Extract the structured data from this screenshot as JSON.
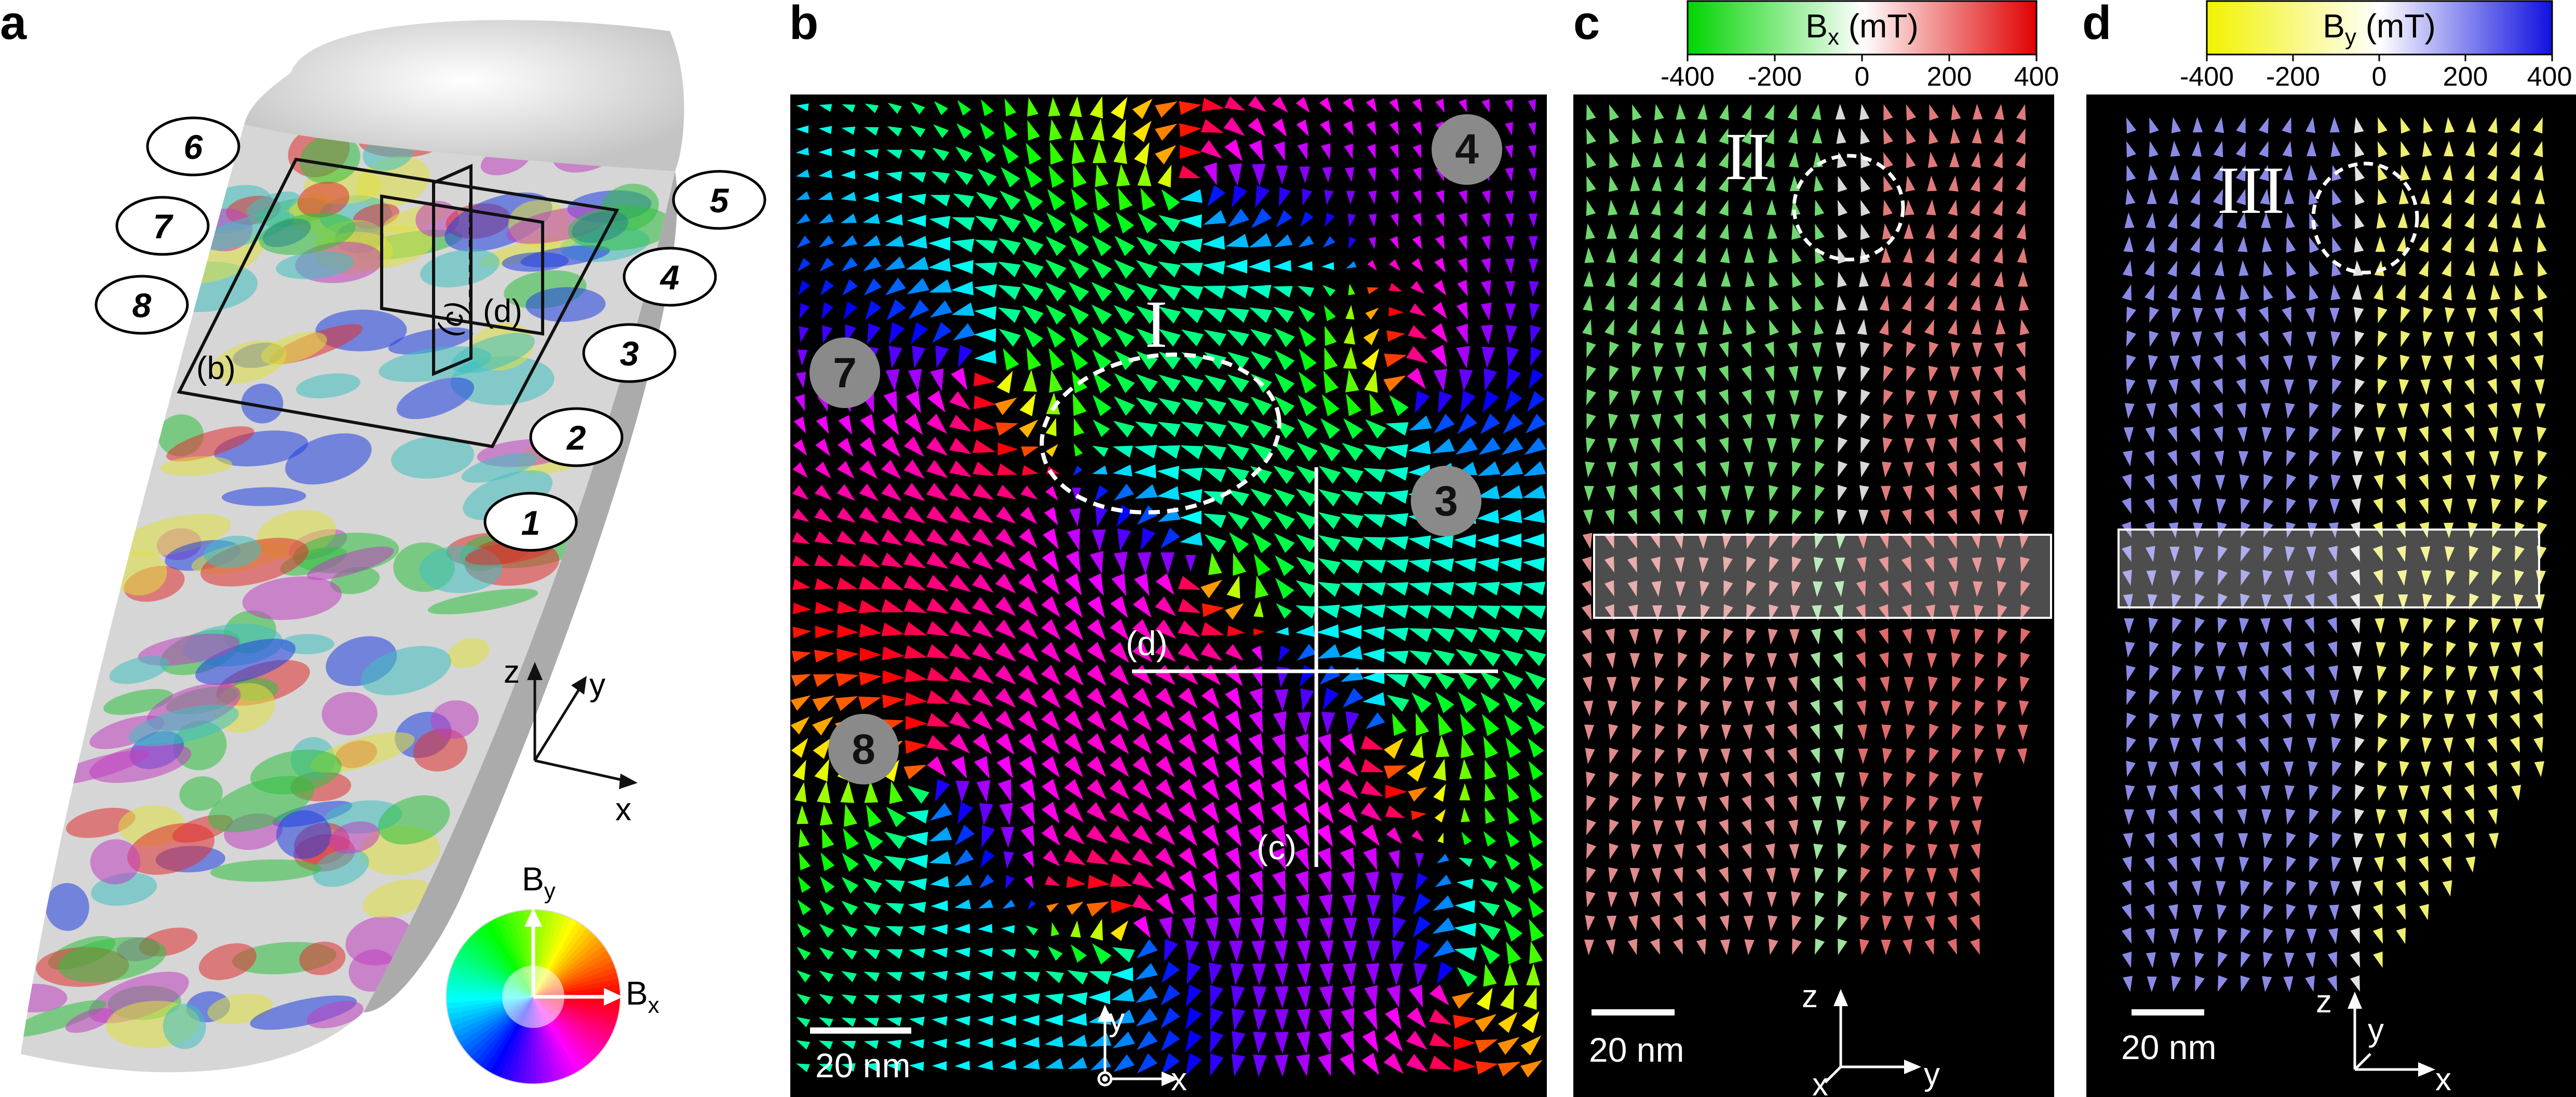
{
  "panel_labels": [
    "a",
    "b",
    "c",
    "d"
  ],
  "panel_a": {
    "markers": [
      "1",
      "2",
      "3",
      "4",
      "5",
      "6",
      "7",
      "8"
    ],
    "slice_labels": [
      "(b)",
      "(c)",
      "(d)"
    ],
    "axes": [
      "x",
      "y",
      "z"
    ],
    "colorwheel": {
      "x_label": "B",
      "x_sub": "x",
      "y_label": "B",
      "y_sub": "y"
    }
  },
  "panel_b": {
    "markers": [
      "4",
      "7",
      "3",
      "8"
    ],
    "region_label": "I",
    "slice_labels": [
      "(d)",
      "(c)"
    ],
    "scalebar": "20 nm",
    "axes": [
      "y",
      "x"
    ]
  },
  "panel_c": {
    "colorbar": {
      "label_pre": "B",
      "label_sub": "x",
      "label_post": " (mT)",
      "ticks": [
        "-400",
        "-200",
        "0",
        "200",
        "400"
      ],
      "colors": [
        "#00d400",
        "#ffffff",
        "#e00000"
      ]
    },
    "region_label": "II",
    "scalebar": "20 nm",
    "axes": [
      "z",
      "x",
      "y"
    ]
  },
  "panel_d": {
    "colorbar": {
      "label_pre": "B",
      "label_sub": "y",
      "label_post": " (mT)",
      "ticks": [
        "-400",
        "-200",
        "0",
        "200",
        "400"
      ],
      "colors": [
        "#f2f200",
        "#ffffff",
        "#1010e0"
      ]
    },
    "region_label": "III",
    "scalebar": "20 nm",
    "axes": [
      "z",
      "y",
      "x"
    ]
  },
  "colors": {
    "background_panels": "#000000",
    "annotation_white": "#ffffff",
    "marker_grey": "#8a8a8a"
  }
}
